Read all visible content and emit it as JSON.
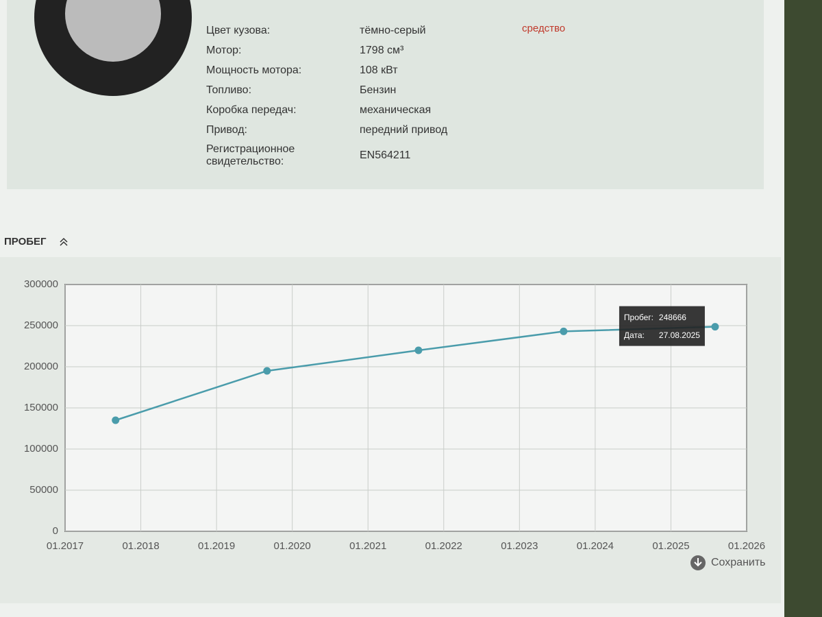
{
  "specs": {
    "rows": [
      [
        "Цвет кузова:",
        "тёмно-серый"
      ],
      [
        "Мотор:",
        "1798 см³"
      ],
      [
        "Мощность мотора:",
        "108 кВт"
      ],
      [
        "Топливо:",
        "Бензин"
      ],
      [
        "Коробка передач:",
        "механическая"
      ],
      [
        "Привод:",
        "передний привод"
      ],
      [
        "Регистрационное свидетельство:",
        "EN564211"
      ]
    ],
    "note": "средство"
  },
  "section_title": "ПРОБЕГ",
  "save_button": "Сохранить",
  "chart_data": {
    "type": "line",
    "x": [
      "09.2017",
      "09.2019",
      "09.2021",
      "08.2023",
      "08.2025"
    ],
    "values": [
      135000,
      195000,
      220000,
      243000,
      248666
    ],
    "color": "#4a9cab",
    "xlim": [
      "01.2017",
      "01.2026"
    ],
    "xticks": [
      "01.2017",
      "01.2018",
      "01.2019",
      "01.2020",
      "01.2021",
      "01.2022",
      "01.2023",
      "01.2024",
      "01.2025",
      "01.2026"
    ],
    "ylim": [
      0,
      300000
    ],
    "yticks": [
      0,
      50000,
      100000,
      150000,
      200000,
      250000,
      300000
    ],
    "grid": true,
    "tooltip": {
      "mileage_label": "Пробег:",
      "date_label": "Дата:",
      "date": "27.08.2025"
    }
  }
}
